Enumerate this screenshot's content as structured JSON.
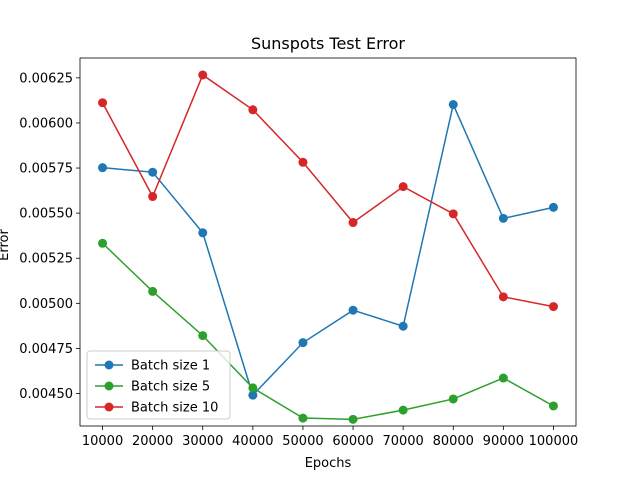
{
  "chart_data": {
    "type": "line",
    "title": "Sunspots Test Error",
    "xlabel": "Epochs",
    "ylabel": "Error",
    "x": [
      10000,
      20000,
      30000,
      40000,
      50000,
      60000,
      70000,
      80000,
      90000,
      100000
    ],
    "x_tick_labels": [
      "10000",
      "20000",
      "30000",
      "40000",
      "50000",
      "60000",
      "70000",
      "80000",
      "90000",
      "100000"
    ],
    "y_ticks": [
      0.0045,
      0.00475,
      0.005,
      0.00525,
      0.0055,
      0.00575,
      0.006,
      0.00625
    ],
    "y_tick_labels": [
      "0.00450",
      "0.00475",
      "0.00500",
      "0.00525",
      "0.00550",
      "0.00575",
      "0.00600",
      "0.00625"
    ],
    "xlim": [
      5500,
      104500
    ],
    "ylim": [
      0.00432,
      0.00636
    ],
    "grid": false,
    "legend_position": "lower-left",
    "series": [
      {
        "name": "Batch size 1",
        "color": "#1f77b4",
        "values": [
          0.005752,
          0.005727,
          0.005391,
          0.004491,
          0.004782,
          0.004962,
          0.004873,
          0.006102,
          0.005471,
          0.005532
        ]
      },
      {
        "name": "Batch size 5",
        "color": "#2ca02c",
        "values": [
          0.005333,
          0.005066,
          0.004821,
          0.004531,
          0.004364,
          0.004357,
          0.004408,
          0.00447,
          0.004586,
          0.004431
        ]
      },
      {
        "name": "Batch size 10",
        "color": "#d62728",
        "values": [
          0.006112,
          0.005592,
          0.006266,
          0.006073,
          0.005782,
          0.005448,
          0.005647,
          0.005496,
          0.005036,
          0.004982
        ]
      }
    ]
  }
}
